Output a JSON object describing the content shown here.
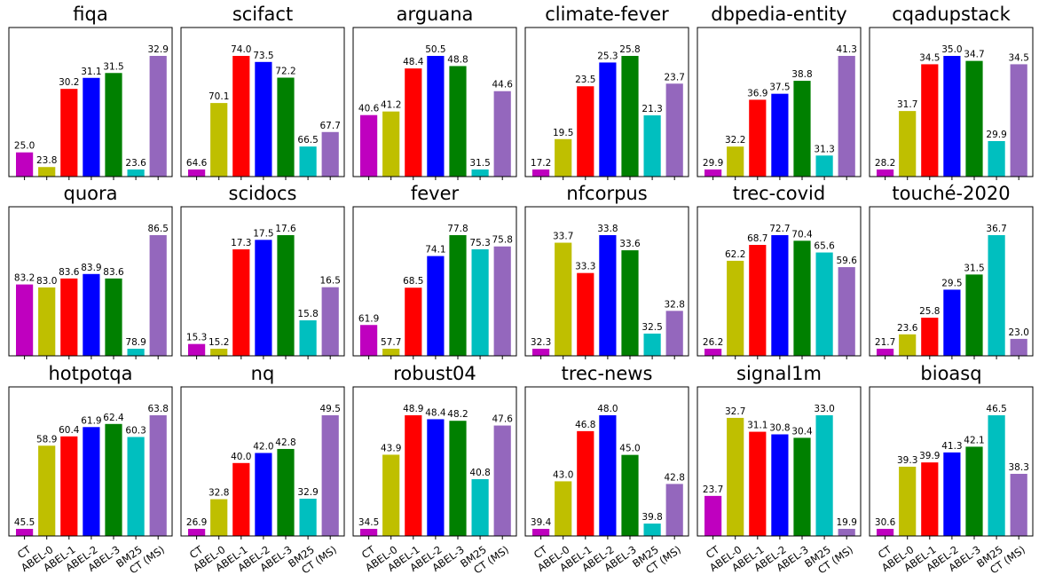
{
  "chart_data": {
    "type": "bar",
    "layout": "grid",
    "grid": {
      "rows": 3,
      "cols": 6
    },
    "categories": [
      "CT",
      "ABEL-0",
      "ABEL-1",
      "ABEL-2",
      "ABEL-3",
      "BM25",
      "CT (MS)"
    ],
    "colors": [
      "#bf00bf",
      "#bfbf00",
      "#ff0000",
      "#0000ff",
      "#008000",
      "#00bfbf",
      "#9467bd"
    ],
    "charts": [
      {
        "title": "fiqa",
        "values": [
          25.0,
          23.8,
          30.2,
          31.1,
          31.5,
          23.6,
          32.9
        ]
      },
      {
        "title": "scifact",
        "values": [
          64.6,
          70.1,
          74.0,
          73.5,
          72.2,
          66.5,
          67.7
        ]
      },
      {
        "title": "arguana",
        "values": [
          40.6,
          41.2,
          48.4,
          50.5,
          48.8,
          31.5,
          44.6
        ]
      },
      {
        "title": "climate-fever",
        "values": [
          17.2,
          19.5,
          23.5,
          25.3,
          25.8,
          21.3,
          23.7
        ]
      },
      {
        "title": "dbpedia-entity",
        "values": [
          29.9,
          32.2,
          36.9,
          37.5,
          38.8,
          31.3,
          41.3
        ]
      },
      {
        "title": "cqadupstack",
        "values": [
          28.2,
          31.7,
          34.5,
          35.0,
          34.7,
          29.9,
          34.5
        ]
      },
      {
        "title": "quora",
        "values": [
          83.2,
          83.0,
          83.6,
          83.9,
          83.6,
          78.9,
          86.5
        ]
      },
      {
        "title": "scidocs",
        "values": [
          15.3,
          15.2,
          17.3,
          17.5,
          17.6,
          15.8,
          16.5
        ]
      },
      {
        "title": "fever",
        "values": [
          61.9,
          57.7,
          68.5,
          74.1,
          77.8,
          75.3,
          75.8
        ]
      },
      {
        "title": "nfcorpus",
        "values": [
          32.3,
          33.7,
          33.3,
          33.8,
          33.6,
          32.5,
          32.8
        ]
      },
      {
        "title": "trec-covid",
        "values": [
          26.2,
          62.2,
          68.7,
          72.7,
          70.4,
          65.6,
          59.6
        ]
      },
      {
        "title": "touché-2020",
        "values": [
          21.7,
          23.6,
          25.8,
          29.5,
          31.5,
          36.7,
          23.0
        ]
      },
      {
        "title": "hotpotqa",
        "values": [
          45.5,
          58.9,
          60.4,
          61.9,
          62.4,
          60.3,
          63.8
        ]
      },
      {
        "title": "nq",
        "values": [
          26.9,
          32.8,
          40.0,
          42.0,
          42.8,
          32.9,
          49.5
        ]
      },
      {
        "title": "robust04",
        "values": [
          34.5,
          43.9,
          48.9,
          48.4,
          48.2,
          40.8,
          47.6
        ]
      },
      {
        "title": "trec-news",
        "values": [
          39.4,
          43.0,
          46.8,
          48.0,
          45.0,
          39.8,
          42.8
        ]
      },
      {
        "title": "signal1m",
        "values": [
          23.7,
          32.7,
          31.1,
          30.8,
          30.4,
          33.0,
          19.9
        ]
      },
      {
        "title": "bioasq",
        "values": [
          30.6,
          39.3,
          39.9,
          41.3,
          42.1,
          46.5,
          38.3
        ]
      }
    ]
  }
}
